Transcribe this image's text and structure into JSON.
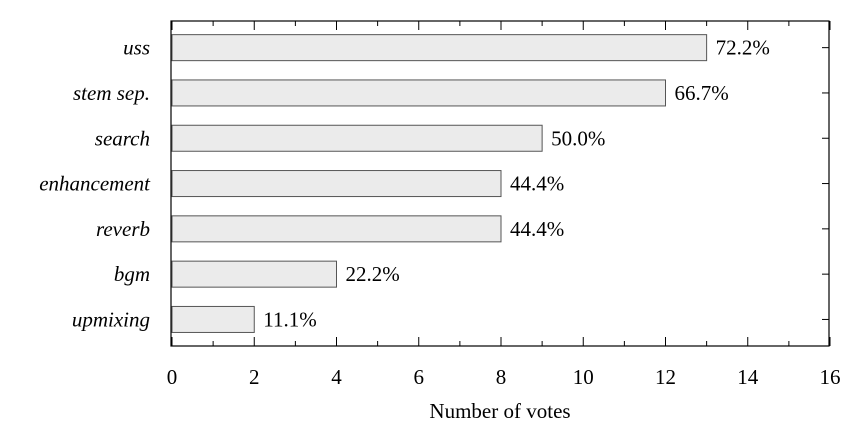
{
  "chart_data": {
    "type": "bar",
    "orientation": "horizontal",
    "categories": [
      "uss",
      "stem sep.",
      "search",
      "enhancement",
      "reverb",
      "bgm",
      "upmixing"
    ],
    "values": [
      13,
      12,
      9,
      8,
      8,
      4,
      2
    ],
    "data_labels": [
      "72.2%",
      "66.7%",
      "50.0%",
      "44.4%",
      "44.4%",
      "22.2%",
      "11.1%"
    ],
    "xlabel": "Number of votes",
    "ylabel": "",
    "title": "",
    "xlim": [
      0,
      16
    ],
    "xticks": [
      0,
      2,
      4,
      6,
      8,
      10,
      12,
      14,
      16
    ],
    "grid": false,
    "legend": "none",
    "bar_fill": "#ebebeb",
    "bar_stroke": "#555555"
  }
}
